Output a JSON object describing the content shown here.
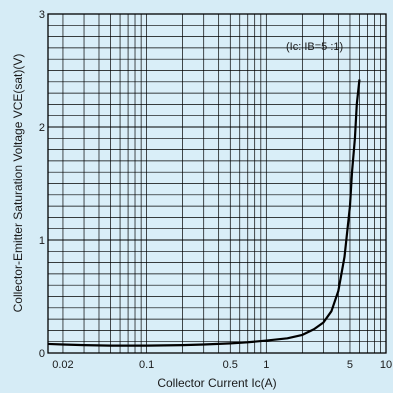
{
  "chart_data": {
    "type": "line",
    "xscale": "log",
    "xlim": [
      0.015,
      10
    ],
    "ylim": [
      0,
      3
    ],
    "grid": true,
    "xlabel": "Collector Current Ic(A)",
    "ylabel": "Collector-Emitter Saturation Voltage VCE(sat)(V)",
    "xticks": [
      {
        "value": 0.02,
        "label": "0.02"
      },
      {
        "value": 0.1,
        "label": "0.1"
      },
      {
        "value": 0.5,
        "label": "0.5"
      },
      {
        "value": 1,
        "label": "1"
      },
      {
        "value": 5,
        "label": "5"
      },
      {
        "value": 10,
        "label": "10"
      }
    ],
    "yticks": [
      {
        "value": 0,
        "label": "0"
      },
      {
        "value": 1,
        "label": "1"
      },
      {
        "value": 2,
        "label": "2"
      },
      {
        "value": 3,
        "label": "3"
      }
    ],
    "annotation": "(Ic: IB=5 :1)",
    "series": [
      {
        "x": [
          0.015,
          0.02,
          0.03,
          0.05,
          0.07,
          0.1,
          0.2,
          0.3,
          0.5,
          0.7,
          1,
          1.5,
          2,
          2.5,
          3,
          3.5,
          4,
          4.5,
          5,
          5.2,
          5.5,
          5.7,
          6
        ],
        "y": [
          0.08,
          0.075,
          0.07,
          0.065,
          0.065,
          0.065,
          0.07,
          0.075,
          0.085,
          0.095,
          0.11,
          0.13,
          0.16,
          0.21,
          0.27,
          0.37,
          0.55,
          0.85,
          1.3,
          1.6,
          1.9,
          2.2,
          2.42
        ]
      }
    ]
  }
}
